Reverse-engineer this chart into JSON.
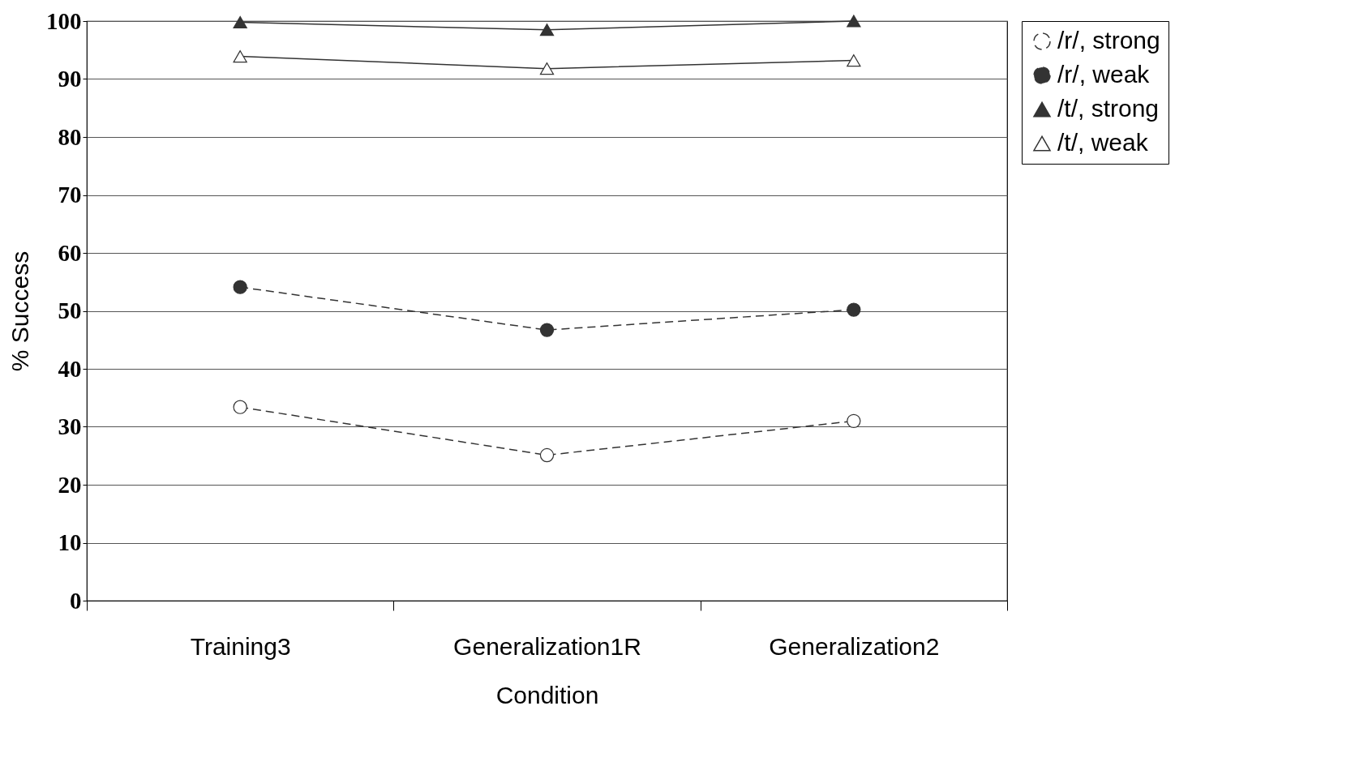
{
  "chart_data": {
    "type": "line",
    "xlabel": "Condition",
    "ylabel": "% Success",
    "categories": [
      "Training3",
      "Generalization1R",
      "Generalization2"
    ],
    "series": [
      {
        "name": "/r/, strong",
        "color": "#ffffff",
        "marker": "circle",
        "line_style": "dashed",
        "values": [
          33.4,
          25.1,
          31.0
        ]
      },
      {
        "name": "/r/, weak",
        "color": "#333333",
        "marker": "circle",
        "line_style": "dashed",
        "values": [
          54.1,
          46.7,
          50.2
        ]
      },
      {
        "name": "/t/, strong",
        "color": "#333333",
        "marker": "triangle",
        "line_style": "solid",
        "values": [
          99.8,
          98.5,
          100.0
        ]
      },
      {
        "name": "/t/, weak",
        "color": "#ffffff",
        "marker": "triangle",
        "line_style": "solid",
        "values": [
          93.9,
          91.8,
          93.2
        ]
      }
    ],
    "ylim": [
      0,
      100
    ],
    "yticks": [
      0,
      10,
      20,
      30,
      40,
      50,
      60,
      70,
      80,
      90,
      100
    ],
    "grid": "y",
    "legend": "right"
  }
}
